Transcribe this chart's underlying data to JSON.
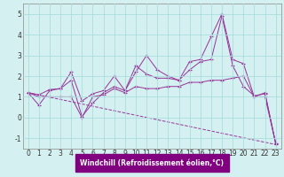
{
  "xlabel": "Windchill (Refroidissement éolien,°C)",
  "x": [
    0,
    1,
    2,
    3,
    4,
    5,
    6,
    7,
    8,
    9,
    10,
    11,
    12,
    13,
    14,
    15,
    16,
    17,
    18,
    19,
    20,
    21,
    22,
    23
  ],
  "series": [
    [
      1.2,
      0.6,
      1.3,
      1.4,
      1.8,
      0.05,
      0.7,
      1.2,
      1.5,
      1.3,
      2.5,
      2.1,
      1.9,
      1.9,
      1.8,
      2.7,
      2.8,
      3.9,
      5.0,
      2.8,
      2.6,
      1.0,
      1.2,
      -1.3
    ],
    [
      1.2,
      1.1,
      1.35,
      1.4,
      2.2,
      0.8,
      1.15,
      1.3,
      2.0,
      1.3,
      2.2,
      3.0,
      2.3,
      2.0,
      1.8,
      2.3,
      2.7,
      2.8,
      4.9,
      2.5,
      1.5,
      1.05,
      1.15,
      -1.25
    ],
    [
      1.2,
      1.0,
      1.0,
      1.0,
      1.0,
      0.0,
      1.0,
      1.1,
      1.4,
      1.2,
      1.5,
      1.4,
      1.4,
      1.5,
      1.5,
      1.7,
      1.7,
      1.8,
      1.8,
      1.9,
      2.0,
      1.0,
      1.0,
      -1.25
    ]
  ],
  "dashed_series": [
    1.2,
    0.95,
    0.7,
    0.45,
    0.2,
    -0.05,
    -0.3,
    -0.55,
    -0.8,
    -1.05,
    -1.3
  ],
  "dashed_x": [
    0,
    2.3,
    4.6,
    6.9,
    9.2,
    11.5,
    13.8,
    16.1,
    18.4,
    20.7,
    23
  ],
  "line_color": "#993399",
  "bg_color": "#d4f0f0",
  "grid_color": "#aadddd",
  "xlabel_bg": "#800080",
  "xlabel_fg": "#ffffff",
  "ylim": [
    -1.5,
    5.5
  ],
  "yticks": [
    -1,
    0,
    1,
    2,
    3,
    4,
    5
  ],
  "xticks": [
    0,
    1,
    2,
    3,
    4,
    5,
    6,
    7,
    8,
    9,
    10,
    11,
    12,
    13,
    14,
    15,
    16,
    17,
    18,
    19,
    20,
    21,
    22,
    23
  ],
  "tick_fontsize": 5.5,
  "xlabel_fontsize": 5.5
}
